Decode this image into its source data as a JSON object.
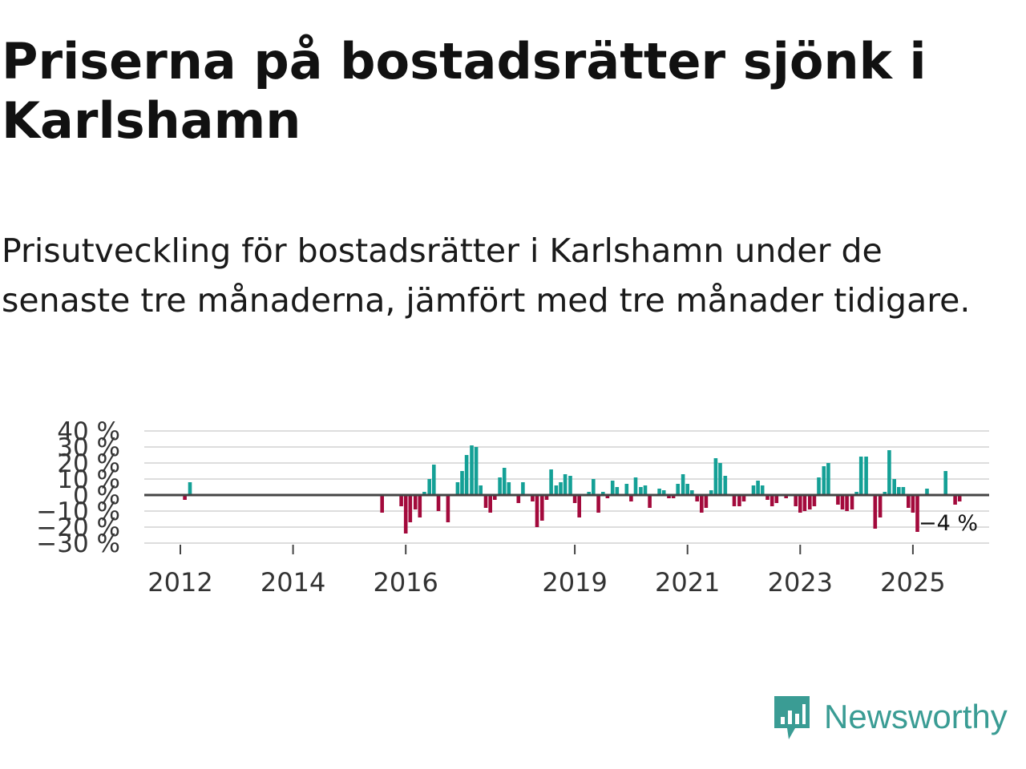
{
  "title": "Priserna på bostadsrätter sjönk i Karlshamn",
  "subtitle": "Prisutveckling för bostadsrätter i Karlshamn under de senaste tre månaderna, jämfört med tre månader tidigare.",
  "brand": {
    "name": "Newsworthy",
    "color": "#3a9c94"
  },
  "colors": {
    "positive": "#14a096",
    "negative": "#a30a3c",
    "grid": "#dddddd",
    "zero": "#444444"
  },
  "chart_data": {
    "type": "bar",
    "ylabel": "",
    "xlabel": "",
    "ylim": [
      -30,
      40
    ],
    "y_ticks": [
      -30,
      -20,
      -10,
      0,
      10,
      20,
      30,
      40
    ],
    "y_tick_labels": [
      "−30 %",
      "−20 %",
      "−10 %",
      "0 %",
      "10 %",
      "20 %",
      "30 %",
      "40 %"
    ],
    "x_range": [
      2011.5,
      2026.5
    ],
    "x_ticks": [
      2012,
      2014,
      2016,
      2019,
      2021,
      2023,
      2025
    ],
    "x_tick_labels": [
      "2012",
      "2014",
      "2016",
      "2019",
      "2021",
      "2023",
      "2025"
    ],
    "last_value_label": "−4 %",
    "series": [
      {
        "name": "Prisutveckling",
        "points": [
          [
            2012.08,
            -3
          ],
          [
            2012.17,
            8
          ],
          [
            2015.58,
            -11
          ],
          [
            2015.92,
            -7
          ],
          [
            2016.0,
            -24
          ],
          [
            2016.08,
            -17
          ],
          [
            2016.17,
            -9
          ],
          [
            2016.25,
            -14
          ],
          [
            2016.33,
            2
          ],
          [
            2016.42,
            10
          ],
          [
            2016.5,
            19
          ],
          [
            2016.58,
            -10
          ],
          [
            2016.75,
            -17
          ],
          [
            2016.92,
            8
          ],
          [
            2017.0,
            15
          ],
          [
            2017.08,
            25
          ],
          [
            2017.17,
            31
          ],
          [
            2017.25,
            30
          ],
          [
            2017.33,
            6
          ],
          [
            2017.42,
            -8
          ],
          [
            2017.5,
            -11
          ],
          [
            2017.58,
            -3
          ],
          [
            2017.67,
            11
          ],
          [
            2017.75,
            17
          ],
          [
            2017.83,
            8
          ],
          [
            2018.0,
            -5
          ],
          [
            2018.08,
            8
          ],
          [
            2018.25,
            -4
          ],
          [
            2018.33,
            -20
          ],
          [
            2018.42,
            -16
          ],
          [
            2018.5,
            -3
          ],
          [
            2018.58,
            16
          ],
          [
            2018.67,
            6
          ],
          [
            2018.75,
            8
          ],
          [
            2018.83,
            13
          ],
          [
            2018.92,
            12
          ],
          [
            2019.0,
            -5
          ],
          [
            2019.08,
            -14
          ],
          [
            2019.25,
            2
          ],
          [
            2019.33,
            10
          ],
          [
            2019.42,
            -11
          ],
          [
            2019.5,
            2
          ],
          [
            2019.58,
            -2
          ],
          [
            2019.67,
            9
          ],
          [
            2019.75,
            5
          ],
          [
            2019.92,
            7
          ],
          [
            2020.0,
            -4
          ],
          [
            2020.08,
            11
          ],
          [
            2020.17,
            5
          ],
          [
            2020.25,
            6
          ],
          [
            2020.33,
            -8
          ],
          [
            2020.5,
            4
          ],
          [
            2020.58,
            3
          ],
          [
            2020.67,
            -2
          ],
          [
            2020.75,
            -2
          ],
          [
            2020.83,
            7
          ],
          [
            2020.92,
            13
          ],
          [
            2021.0,
            7
          ],
          [
            2021.08,
            3
          ],
          [
            2021.17,
            -4
          ],
          [
            2021.25,
            -11
          ],
          [
            2021.33,
            -8
          ],
          [
            2021.42,
            3
          ],
          [
            2021.5,
            23
          ],
          [
            2021.58,
            20
          ],
          [
            2021.67,
            12
          ],
          [
            2021.83,
            -7
          ],
          [
            2021.92,
            -7
          ],
          [
            2022.0,
            -4
          ],
          [
            2022.17,
            6
          ],
          [
            2022.25,
            9
          ],
          [
            2022.33,
            6
          ],
          [
            2022.42,
            -3
          ],
          [
            2022.5,
            -7
          ],
          [
            2022.58,
            -5
          ],
          [
            2022.75,
            -2
          ],
          [
            2022.92,
            -7
          ],
          [
            2023.0,
            -11
          ],
          [
            2023.08,
            -10
          ],
          [
            2023.17,
            -9
          ],
          [
            2023.25,
            -7
          ],
          [
            2023.33,
            11
          ],
          [
            2023.42,
            18
          ],
          [
            2023.5,
            20
          ],
          [
            2023.67,
            -6
          ],
          [
            2023.75,
            -9
          ],
          [
            2023.83,
            -10
          ],
          [
            2023.92,
            -9
          ],
          [
            2024.0,
            2
          ],
          [
            2024.08,
            24
          ],
          [
            2024.17,
            24
          ],
          [
            2024.33,
            -21
          ],
          [
            2024.42,
            -14
          ],
          [
            2024.5,
            2
          ],
          [
            2024.58,
            28
          ],
          [
            2024.67,
            10
          ],
          [
            2024.75,
            5
          ],
          [
            2024.83,
            5
          ],
          [
            2024.92,
            -8
          ],
          [
            2025.0,
            -11
          ],
          [
            2025.08,
            -23
          ],
          [
            2025.25,
            4
          ],
          [
            2025.58,
            15
          ],
          [
            2025.75,
            -6
          ],
          [
            2025.83,
            -4
          ]
        ]
      }
    ]
  }
}
